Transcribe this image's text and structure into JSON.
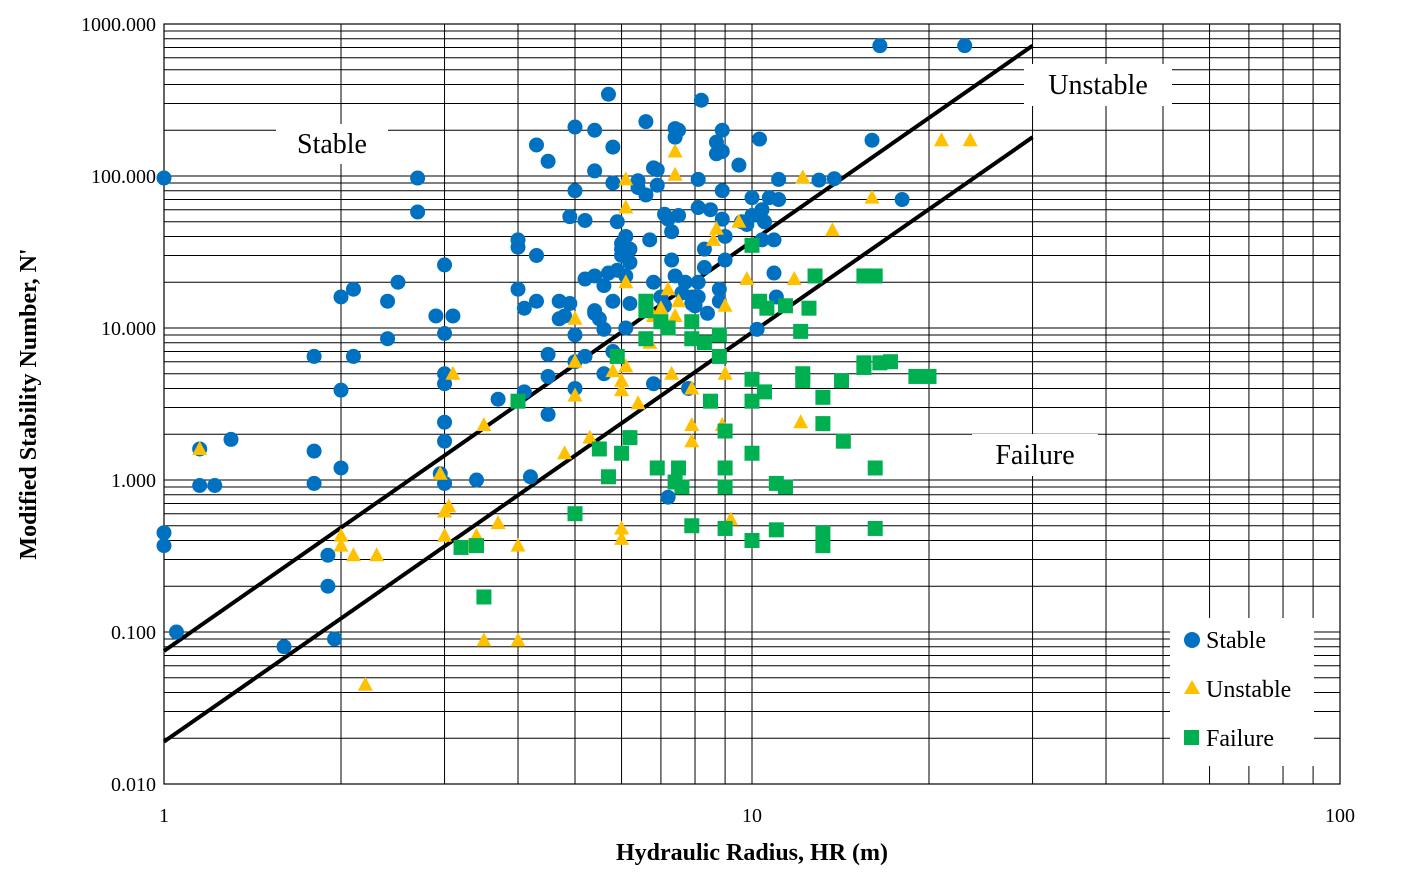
{
  "chart_data": {
    "type": "scatter",
    "xlabel": "Hydraulic Radius, HR (m)",
    "ylabel": "Modified Stability Number, N'",
    "x_scale": "log",
    "y_scale": "log",
    "xlim": [
      1,
      100
    ],
    "ylim": [
      0.01,
      1000
    ],
    "x_ticks": [
      "1",
      "10",
      "100"
    ],
    "y_ticks": [
      "0.010",
      "0.100",
      "1.000",
      "10.000",
      "100.000",
      "1000.000"
    ],
    "grid": true,
    "legend_position": "bottom-right",
    "region_labels": [
      "Stable",
      "Unstable",
      "Failure"
    ],
    "boundary_lines": [
      {
        "points": [
          [
            1,
            0.075
          ],
          [
            30,
            720
          ]
        ]
      },
      {
        "points": [
          [
            1,
            0.019
          ],
          [
            30,
            180
          ]
        ]
      }
    ],
    "series": [
      {
        "name": "Stable",
        "color": "#0070C0",
        "marker": "circle",
        "points": [
          [
            1.0,
            97
          ],
          [
            1.0,
            0.45
          ],
          [
            1.0,
            0.37
          ],
          [
            1.05,
            0.1
          ],
          [
            1.15,
            1.6
          ],
          [
            1.15,
            0.92
          ],
          [
            1.22,
            0.92
          ],
          [
            1.3,
            1.85
          ],
          [
            1.8,
            6.5
          ],
          [
            1.8,
            1.55
          ],
          [
            1.8,
            0.95
          ],
          [
            1.6,
            0.08
          ],
          [
            1.9,
            0.32
          ],
          [
            1.9,
            0.2
          ],
          [
            1.95,
            0.09
          ],
          [
            2.0,
            16
          ],
          [
            2.0,
            3.9
          ],
          [
            2.0,
            1.2
          ],
          [
            2.1,
            18
          ],
          [
            2.1,
            6.5
          ],
          [
            2.4,
            15
          ],
          [
            2.4,
            8.5
          ],
          [
            2.5,
            20
          ],
          [
            2.7,
            97
          ],
          [
            2.7,
            58
          ],
          [
            2.9,
            12
          ],
          [
            3.0,
            26
          ],
          [
            3.0,
            9.2
          ],
          [
            3.0,
            5.0
          ],
          [
            3.0,
            4.3
          ],
          [
            3.0,
            2.4
          ],
          [
            3.0,
            1.8
          ],
          [
            2.95,
            1.1
          ],
          [
            3.0,
            0.95
          ],
          [
            3.1,
            12
          ],
          [
            3.4,
            1.0
          ],
          [
            3.7,
            3.4
          ],
          [
            4.0,
            38
          ],
          [
            4.0,
            34
          ],
          [
            4.0,
            18
          ],
          [
            4.1,
            13.5
          ],
          [
            4.1,
            3.8
          ],
          [
            4.2,
            1.05
          ],
          [
            4.3,
            160
          ],
          [
            4.3,
            30
          ],
          [
            4.3,
            15
          ],
          [
            4.5,
            125
          ],
          [
            4.5,
            6.7
          ],
          [
            4.5,
            4.8
          ],
          [
            4.5,
            2.7
          ],
          [
            4.7,
            15
          ],
          [
            4.7,
            11.5
          ],
          [
            4.8,
            12
          ],
          [
            4.9,
            54
          ],
          [
            4.9,
            14.5
          ],
          [
            5.0,
            210
          ],
          [
            5.0,
            80
          ],
          [
            5.0,
            9
          ],
          [
            5.0,
            6.0
          ],
          [
            5.0,
            4.0
          ],
          [
            5.2,
            51
          ],
          [
            5.2,
            21
          ],
          [
            5.2,
            6.5
          ],
          [
            5.4,
            200
          ],
          [
            5.4,
            108
          ],
          [
            5.4,
            22
          ],
          [
            5.4,
            13
          ],
          [
            5.4,
            12.5
          ],
          [
            5.5,
            11.5
          ],
          [
            5.6,
            5.0
          ],
          [
            5.6,
            9.8
          ],
          [
            5.6,
            19
          ],
          [
            5.7,
            345
          ],
          [
            5.7,
            23
          ],
          [
            5.8,
            155
          ],
          [
            5.8,
            90
          ],
          [
            5.8,
            7.0
          ],
          [
            5.8,
            15
          ],
          [
            5.9,
            50
          ],
          [
            5.9,
            24
          ],
          [
            6.0,
            36
          ],
          [
            6.0,
            33
          ],
          [
            6.0,
            30
          ],
          [
            6.1,
            40
          ],
          [
            6.1,
            22
          ],
          [
            6.1,
            10
          ],
          [
            6.2,
            33
          ],
          [
            6.2,
            27
          ],
          [
            6.2,
            14.5
          ],
          [
            6.4,
            93
          ],
          [
            6.4,
            84
          ],
          [
            6.6,
            75
          ],
          [
            6.6,
            228
          ],
          [
            6.7,
            38
          ],
          [
            6.8,
            113
          ],
          [
            6.8,
            20
          ],
          [
            6.8,
            4.3
          ],
          [
            6.9,
            110
          ],
          [
            6.9,
            87
          ],
          [
            7.0,
            16
          ],
          [
            7.1,
            56
          ],
          [
            7.1,
            14
          ],
          [
            7.2,
            52
          ],
          [
            7.3,
            43
          ],
          [
            7.3,
            28
          ],
          [
            7.4,
            205
          ],
          [
            7.4,
            22
          ],
          [
            7.4,
            180
          ],
          [
            7.5,
            200
          ],
          [
            7.5,
            55
          ],
          [
            7.6,
            17
          ],
          [
            7.7,
            20
          ],
          [
            7.2,
            0.77
          ],
          [
            7.8,
            4.0
          ],
          [
            7.9,
            16
          ],
          [
            7.9,
            14.5
          ],
          [
            8.0,
            14
          ],
          [
            8.1,
            95
          ],
          [
            8.1,
            62
          ],
          [
            8.1,
            20
          ],
          [
            8.1,
            16
          ],
          [
            8.2,
            315
          ],
          [
            8.3,
            33
          ],
          [
            8.3,
            25
          ],
          [
            8.3,
            8.0
          ],
          [
            8.4,
            12.5
          ],
          [
            8.5,
            60
          ],
          [
            8.7,
            167
          ],
          [
            8.7,
            140
          ],
          [
            8.8,
            18
          ],
          [
            8.8,
            15
          ],
          [
            8.9,
            200
          ],
          [
            8.9,
            145
          ],
          [
            8.9,
            80
          ],
          [
            8.9,
            52
          ],
          [
            9.0,
            40
          ],
          [
            9.0,
            28
          ],
          [
            9.5,
            118
          ],
          [
            9.6,
            50
          ],
          [
            9.8,
            48
          ],
          [
            10.0,
            72
          ],
          [
            10.0,
            55
          ],
          [
            10.2,
            9.8
          ],
          [
            10.3,
            175
          ],
          [
            10.4,
            60
          ],
          [
            10.4,
            38
          ],
          [
            10.5,
            50
          ],
          [
            10.7,
            72
          ],
          [
            10.9,
            38
          ],
          [
            10.9,
            23
          ],
          [
            11.0,
            16
          ],
          [
            11.1,
            95
          ],
          [
            11.1,
            70
          ],
          [
            13.0,
            94
          ],
          [
            13.8,
            96
          ],
          [
            16.0,
            172
          ],
          [
            16.5,
            720
          ],
          [
            18.0,
            70
          ],
          [
            23.0,
            720
          ]
        ]
      },
      {
        "name": "Unstable",
        "color": "#FFC000",
        "marker": "triangle",
        "points": [
          [
            1.15,
            1.6
          ],
          [
            2.0,
            0.43
          ],
          [
            2.0,
            0.37
          ],
          [
            2.1,
            0.32
          ],
          [
            2.2,
            0.045
          ],
          [
            2.3,
            0.32
          ],
          [
            2.95,
            1.1
          ],
          [
            3.0,
            0.62
          ],
          [
            3.0,
            0.43
          ],
          [
            3.05,
            0.67
          ],
          [
            3.1,
            5.0
          ],
          [
            3.3,
            0.37
          ],
          [
            3.4,
            0.43
          ],
          [
            3.5,
            0.088
          ],
          [
            3.5,
            2.3
          ],
          [
            3.7,
            0.52
          ],
          [
            4.0,
            0.37
          ],
          [
            4.0,
            0.088
          ],
          [
            4.8,
            1.5
          ],
          [
            5.0,
            11.5
          ],
          [
            5.0,
            3.6
          ],
          [
            5.0,
            6.0
          ],
          [
            5.3,
            1.9
          ],
          [
            5.8,
            5.2
          ],
          [
            6.0,
            4.5
          ],
          [
            6.0,
            3.9
          ],
          [
            6.0,
            0.48
          ],
          [
            6.0,
            0.41
          ],
          [
            6.1,
            5.6
          ],
          [
            6.1,
            20
          ],
          [
            6.1,
            62
          ],
          [
            6.1,
            95
          ],
          [
            6.4,
            3.2
          ],
          [
            6.7,
            8.0
          ],
          [
            6.8,
            12
          ],
          [
            7.0,
            13.5
          ],
          [
            7.2,
            18
          ],
          [
            7.3,
            5.0
          ],
          [
            7.4,
            145
          ],
          [
            7.4,
            102
          ],
          [
            7.4,
            12
          ],
          [
            7.5,
            15
          ],
          [
            7.9,
            4.0
          ],
          [
            7.9,
            2.3
          ],
          [
            7.9,
            1.8
          ],
          [
            8.6,
            38
          ],
          [
            8.7,
            45
          ],
          [
            8.9,
            2.3
          ],
          [
            9.0,
            5.0
          ],
          [
            9.0,
            14
          ],
          [
            9.2,
            0.55
          ],
          [
            9.5,
            50
          ],
          [
            9.8,
            21
          ],
          [
            10.0,
            4.6
          ],
          [
            11.8,
            21
          ],
          [
            12.1,
            2.4
          ],
          [
            12.2,
            98
          ],
          [
            13.7,
            44
          ],
          [
            16.0,
            72
          ],
          [
            21.0,
            172
          ],
          [
            23.5,
            172
          ]
        ]
      },
      {
        "name": "Failure",
        "color": "#00B050",
        "marker": "square",
        "points": [
          [
            3.2,
            0.36
          ],
          [
            3.4,
            0.37
          ],
          [
            3.5,
            0.17
          ],
          [
            4.0,
            3.3
          ],
          [
            5.0,
            0.6
          ],
          [
            5.5,
            1.6
          ],
          [
            5.7,
            1.05
          ],
          [
            5.9,
            6.5
          ],
          [
            6.0,
            1.5
          ],
          [
            6.2,
            1.9
          ],
          [
            6.6,
            15
          ],
          [
            6.6,
            13
          ],
          [
            6.6,
            8.5
          ],
          [
            6.9,
            1.2
          ],
          [
            7.0,
            11
          ],
          [
            7.2,
            10
          ],
          [
            7.4,
            0.97
          ],
          [
            7.5,
            1.2
          ],
          [
            7.6,
            0.9
          ],
          [
            7.9,
            11
          ],
          [
            7.9,
            8.5
          ],
          [
            7.9,
            0.5
          ],
          [
            8.3,
            8.0
          ],
          [
            8.5,
            3.3
          ],
          [
            8.8,
            6.5
          ],
          [
            8.8,
            9.0
          ],
          [
            9.0,
            2.1
          ],
          [
            9.0,
            1.2
          ],
          [
            9.0,
            0.9
          ],
          [
            9.0,
            0.48
          ],
          [
            10.0,
            35
          ],
          [
            10.0,
            4.6
          ],
          [
            10.0,
            3.3
          ],
          [
            10.0,
            1.5
          ],
          [
            10.0,
            0.4
          ],
          [
            10.3,
            15
          ],
          [
            10.5,
            3.8
          ],
          [
            10.6,
            13.5
          ],
          [
            11.0,
            0.95
          ],
          [
            11.0,
            0.47
          ],
          [
            11.4,
            0.9
          ],
          [
            11.4,
            14
          ],
          [
            12.1,
            9.5
          ],
          [
            12.2,
            5.0
          ],
          [
            12.2,
            4.5
          ],
          [
            12.5,
            13.5
          ],
          [
            12.8,
            22
          ],
          [
            13.2,
            3.5
          ],
          [
            13.2,
            2.35
          ],
          [
            13.2,
            0.45
          ],
          [
            13.2,
            0.37
          ],
          [
            14.2,
            4.5
          ],
          [
            14.3,
            1.8
          ],
          [
            15.5,
            22
          ],
          [
            15.5,
            5.5
          ],
          [
            15.5,
            5.9
          ],
          [
            16.2,
            22
          ],
          [
            16.2,
            1.2
          ],
          [
            16.2,
            0.48
          ],
          [
            16.5,
            5.9
          ],
          [
            17.2,
            6.0
          ],
          [
            19.0,
            4.8
          ],
          [
            20.0,
            4.8
          ]
        ]
      }
    ]
  }
}
